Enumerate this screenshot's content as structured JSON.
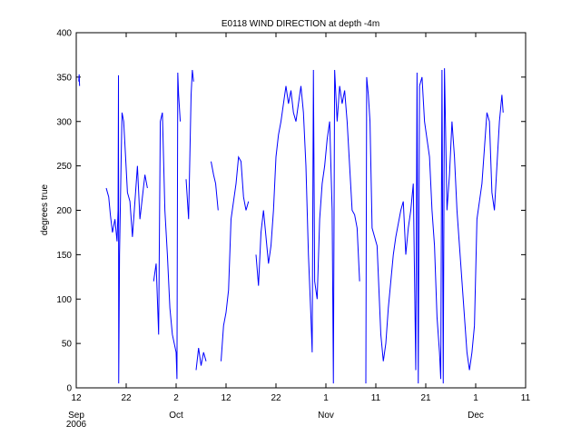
{
  "chart_data": {
    "type": "line",
    "title": "E0118 WIND DIRECTION at depth -4m",
    "xlabel": "",
    "ylabel": "degrees true",
    "ylim": [
      0,
      400
    ],
    "yticks": [
      0,
      50,
      100,
      150,
      200,
      250,
      300,
      350,
      400
    ],
    "xlim": [
      "2006-09-12",
      "2006-12-11"
    ],
    "xticks": [
      {
        "date": "2006-09-12",
        "label": "12"
      },
      {
        "date": "2006-09-22",
        "label": "22"
      },
      {
        "date": "2006-10-02",
        "label": "2"
      },
      {
        "date": "2006-10-12",
        "label": "12"
      },
      {
        "date": "2006-10-22",
        "label": "22"
      },
      {
        "date": "2006-11-01",
        "label": "1"
      },
      {
        "date": "2006-11-11",
        "label": "11"
      },
      {
        "date": "2006-11-21",
        "label": "21"
      },
      {
        "date": "2006-12-01",
        "label": "1"
      },
      {
        "date": "2006-12-11",
        "label": "11"
      }
    ],
    "month_labels": [
      {
        "date": "2006-09-12",
        "label": "Sep"
      },
      {
        "date": "2006-10-02",
        "label": "Oct"
      },
      {
        "date": "2006-11-01",
        "label": "Nov"
      },
      {
        "date": "2006-12-01",
        "label": "Dec"
      }
    ],
    "year_label": "2006",
    "grid": false,
    "color": "#0000ff",
    "series": [
      {
        "segments": [
          [
            [
              "2006-09-12T12:00",
              345
            ],
            [
              "2006-09-12T14:00",
              353
            ],
            [
              "2006-09-12T16:00",
              340
            ]
          ],
          [
            [
              "2006-09-18T00:00",
              225
            ],
            [
              "2006-09-18T12:00",
              215
            ],
            [
              "2006-09-18T20:00",
              195
            ],
            [
              "2006-09-19T06:00",
              175
            ],
            [
              "2006-09-19T18:00",
              190
            ],
            [
              "2006-09-20T04:00",
              165
            ],
            [
              "2006-09-20T09:00",
              200
            ],
            [
              "2006-09-20T11:00",
              352
            ],
            [
              "2006-09-20T12:00",
              5
            ],
            [
              "2006-09-20T16:00",
              150
            ],
            [
              "2006-09-21T00:00",
              260
            ],
            [
              "2006-09-21T04:00",
              310
            ],
            [
              "2006-09-21T12:00",
              300
            ],
            [
              "2006-09-21T20:00",
              265
            ],
            [
              "2006-09-22T06:00",
              220
            ],
            [
              "2006-09-22T18:00",
              210
            ],
            [
              "2006-09-23T06:00",
              170
            ],
            [
              "2006-09-23T18:00",
              210
            ],
            [
              "2006-09-24T06:00",
              250
            ],
            [
              "2006-09-24T18:00",
              190
            ],
            [
              "2006-09-25T06:00",
              215
            ],
            [
              "2006-09-25T18:00",
              240
            ],
            [
              "2006-09-26T06:00",
              225
            ]
          ],
          [
            [
              "2006-09-27T12:00",
              120
            ],
            [
              "2006-09-28T00:00",
              140
            ],
            [
              "2006-09-28T12:00",
              60
            ],
            [
              "2006-09-28T20:00",
              300
            ],
            [
              "2006-09-29T06:00",
              310
            ],
            [
              "2006-09-29T18:00",
              200
            ],
            [
              "2006-09-30T06:00",
              150
            ],
            [
              "2006-09-30T18:00",
              90
            ],
            [
              "2006-10-01T06:00",
              60
            ],
            [
              "2006-10-02T00:00",
              40
            ],
            [
              "2006-10-02T04:00",
              10
            ],
            [
              "2006-10-02T08:00",
              355
            ],
            [
              "2006-10-02T12:00",
              330
            ],
            [
              "2006-10-02T20:00",
              300
            ]
          ],
          [
            [
              "2006-10-04T00:00",
              235
            ],
            [
              "2006-10-04T12:00",
              190
            ],
            [
              "2006-10-05T00:00",
              330
            ],
            [
              "2006-10-05T06:00",
              358
            ],
            [
              "2006-10-05T12:00",
              345
            ]
          ],
          [
            [
              "2006-10-06T00:00",
              20
            ],
            [
              "2006-10-06T12:00",
              45
            ],
            [
              "2006-10-07T00:00",
              25
            ],
            [
              "2006-10-07T12:00",
              40
            ],
            [
              "2006-10-08T00:00",
              30
            ]
          ],
          [
            [
              "2006-10-09T00:00",
              255
            ],
            [
              "2006-10-09T12:00",
              240
            ],
            [
              "2006-10-09T22:00",
              230
            ],
            [
              "2006-10-10T10:00",
              200
            ]
          ],
          [
            [
              "2006-10-11T00:00",
              30
            ],
            [
              "2006-10-11T12:00",
              70
            ],
            [
              "2006-10-12T00:00",
              85
            ],
            [
              "2006-10-12T12:00",
              110
            ],
            [
              "2006-10-13T00:00",
              190
            ],
            [
              "2006-10-13T12:00",
              210
            ],
            [
              "2006-10-14T00:00",
              230
            ],
            [
              "2006-10-14T12:00",
              260
            ],
            [
              "2006-10-15T00:00",
              255
            ],
            [
              "2006-10-15T12:00",
              215
            ],
            [
              "2006-10-16T00:00",
              200
            ],
            [
              "2006-10-16T12:00",
              210
            ]
          ],
          [
            [
              "2006-10-18T00:00",
              150
            ],
            [
              "2006-10-18T12:00",
              115
            ],
            [
              "2006-10-19T00:00",
              175
            ],
            [
              "2006-10-19T12:00",
              200
            ],
            [
              "2006-10-20T00:00",
              170
            ],
            [
              "2006-10-20T12:00",
              140
            ],
            [
              "2006-10-21T00:00",
              160
            ],
            [
              "2006-10-21T12:00",
              200
            ],
            [
              "2006-10-22T00:00",
              260
            ],
            [
              "2006-10-22T12:00",
              285
            ],
            [
              "2006-10-23T00:00",
              300
            ],
            [
              "2006-10-23T12:00",
              320
            ],
            [
              "2006-10-24T00:00",
              340
            ],
            [
              "2006-10-24T12:00",
              320
            ],
            [
              "2006-10-25T00:00",
              335
            ],
            [
              "2006-10-25T12:00",
              310
            ],
            [
              "2006-10-26T00:00",
              300
            ],
            [
              "2006-10-26T12:00",
              320
            ],
            [
              "2006-10-27T00:00",
              340
            ],
            [
              "2006-10-27T12:00",
              310
            ],
            [
              "2006-10-28T00:00",
              250
            ],
            [
              "2006-10-28T12:00",
              150
            ],
            [
              "2006-10-29T00:00",
              80
            ],
            [
              "2006-10-29T06:00",
              40
            ],
            [
              "2006-10-29T12:00",
              358
            ],
            [
              "2006-10-29T18:00",
              120
            ],
            [
              "2006-10-30T06:00",
              100
            ],
            [
              "2006-10-30T18:00",
              190
            ],
            [
              "2006-10-31T06:00",
              230
            ],
            [
              "2006-10-31T18:00",
              250
            ],
            [
              "2006-11-01T06:00",
              280
            ],
            [
              "2006-11-01T18:00",
              300
            ],
            [
              "2006-11-02T06:00",
              200
            ],
            [
              "2006-11-02T12:00",
              5
            ],
            [
              "2006-11-02T18:00",
              358
            ],
            [
              "2006-11-03T06:00",
              300
            ],
            [
              "2006-11-03T18:00",
              340
            ],
            [
              "2006-11-04T06:00",
              320
            ],
            [
              "2006-11-04T18:00",
              335
            ],
            [
              "2006-11-05T06:00",
              300
            ],
            [
              "2006-11-05T18:00",
              250
            ],
            [
              "2006-11-06T06:00",
              200
            ],
            [
              "2006-11-06T18:00",
              195
            ],
            [
              "2006-11-07T06:00",
              180
            ],
            [
              "2006-11-07T18:00",
              120
            ]
          ],
          [
            [
              "2006-11-09T00:00",
              5
            ],
            [
              "2006-11-09T04:00",
              350
            ],
            [
              "2006-11-09T12:00",
              330
            ],
            [
              "2006-11-09T20:00",
              300
            ],
            [
              "2006-11-10T06:00",
              180
            ],
            [
              "2006-11-10T18:00",
              170
            ],
            [
              "2006-11-11T06:00",
              160
            ],
            [
              "2006-11-12T00:00",
              60
            ],
            [
              "2006-11-12T12:00",
              30
            ],
            [
              "2006-11-13T00:00",
              50
            ],
            [
              "2006-11-13T12:00",
              90
            ],
            [
              "2006-11-14T00:00",
              120
            ],
            [
              "2006-11-14T12:00",
              150
            ],
            [
              "2006-11-15T00:00",
              170
            ],
            [
              "2006-11-15T12:00",
              185
            ],
            [
              "2006-11-16T00:00",
              200
            ],
            [
              "2006-11-16T12:00",
              210
            ],
            [
              "2006-11-17T00:00",
              150
            ],
            [
              "2006-11-17T12:00",
              180
            ],
            [
              "2006-11-18T00:00",
              200
            ],
            [
              "2006-11-18T12:00",
              230
            ],
            [
              "2006-11-19T00:00",
              20
            ],
            [
              "2006-11-19T06:00",
              355
            ],
            [
              "2006-11-19T12:00",
              5
            ],
            [
              "2006-11-19T18:00",
              340
            ],
            [
              "2006-11-20T06:00",
              350
            ],
            [
              "2006-11-20T18:00",
              300
            ],
            [
              "2006-11-21T06:00",
              280
            ],
            [
              "2006-11-21T18:00",
              260
            ],
            [
              "2006-11-22T06:00",
              200
            ],
            [
              "2006-11-22T18:00",
              160
            ],
            [
              "2006-11-23T06:00",
              80
            ],
            [
              "2006-11-23T18:00",
              40
            ],
            [
              "2006-11-24T00:00",
              10
            ],
            [
              "2006-11-24T06:00",
              358
            ],
            [
              "2006-11-24T12:00",
              5
            ],
            [
              "2006-11-24T18:00",
              360
            ],
            [
              "2006-11-25T06:00",
              200
            ],
            [
              "2006-11-25T18:00",
              240
            ],
            [
              "2006-11-26T06:00",
              300
            ],
            [
              "2006-11-26T18:00",
              260
            ],
            [
              "2006-11-27T06:00",
              200
            ],
            [
              "2006-11-27T18:00",
              160
            ],
            [
              "2006-11-28T06:00",
              120
            ],
            [
              "2006-11-28T18:00",
              80
            ],
            [
              "2006-11-29T06:00",
              40
            ],
            [
              "2006-11-29T18:00",
              20
            ],
            [
              "2006-11-30T06:00",
              40
            ],
            [
              "2006-11-30T18:00",
              70
            ],
            [
              "2006-12-01T06:00",
              190
            ],
            [
              "2006-12-01T18:00",
              210
            ],
            [
              "2006-12-02T06:00",
              230
            ],
            [
              "2006-12-02T18:00",
              270
            ],
            [
              "2006-12-03T06:00",
              310
            ],
            [
              "2006-12-03T18:00",
              300
            ],
            [
              "2006-12-04T06:00",
              220
            ],
            [
              "2006-12-04T18:00",
              200
            ],
            [
              "2006-12-05T06:00",
              250
            ],
            [
              "2006-12-05T18:00",
              300
            ],
            [
              "2006-12-06T06:00",
              330
            ],
            [
              "2006-12-06T12:00",
              310
            ]
          ]
        ]
      }
    ]
  }
}
